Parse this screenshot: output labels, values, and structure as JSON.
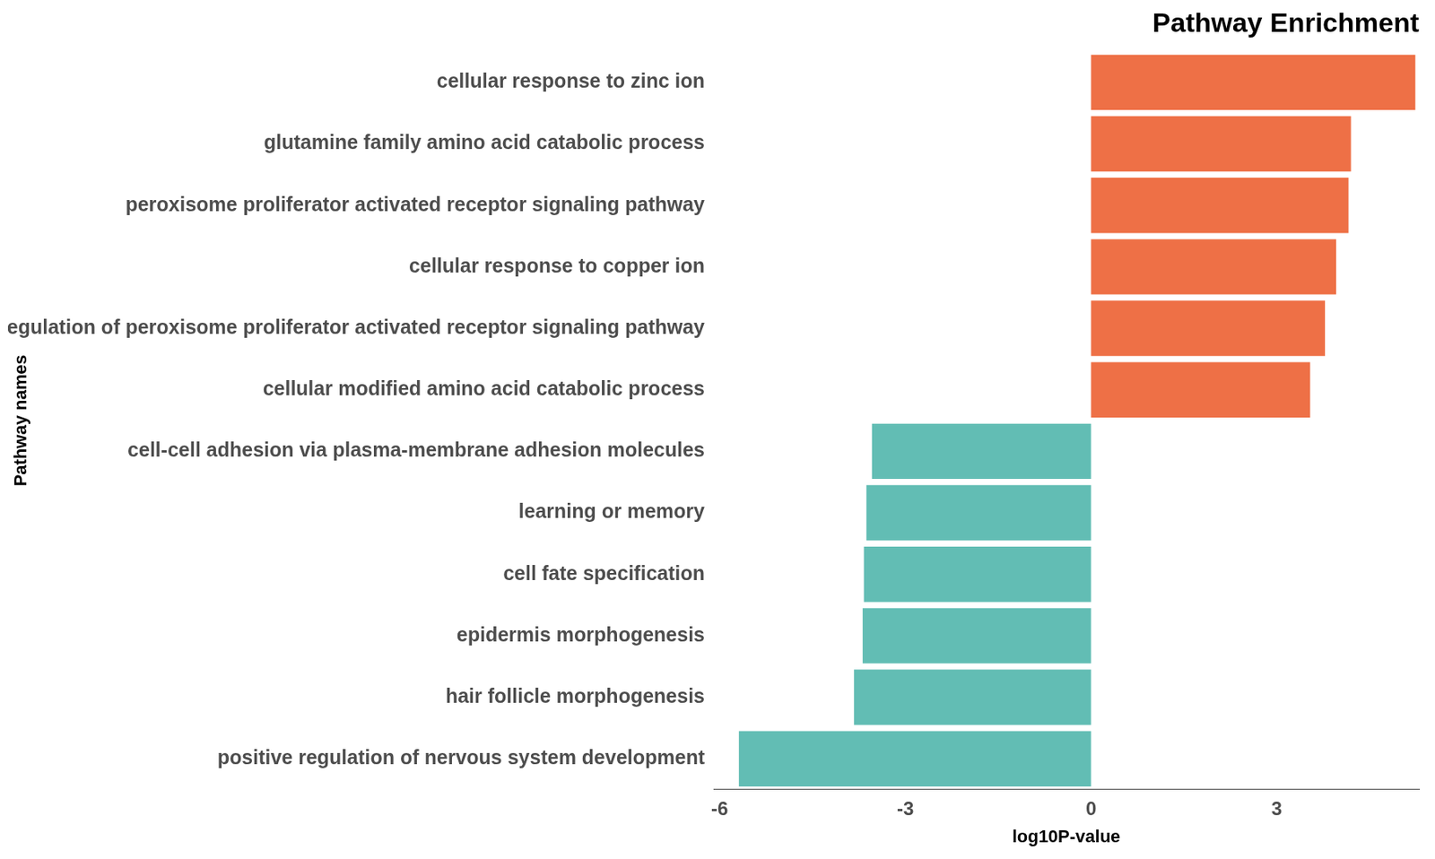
{
  "chart_data": {
    "type": "bar",
    "orientation": "horizontal",
    "title": "Pathway Enrichment",
    "x_label": "log10P-value",
    "y_label": "Pathway names",
    "categories": [
      "cellular response to zinc ion",
      "glutamine family amino acid catabolic process",
      "peroxisome proliferator activated receptor signaling pathway",
      "cellular response to copper ion",
      "regulation of peroxisome proliferator activated receptor signaling pathway",
      "cellular modified amino acid catabolic process",
      "cell-cell adhesion via plasma-membrane adhesion molecules",
      "learning or memory",
      "cell fate specification",
      "epidermis morphogenesis",
      "hair follicle morphogenesis",
      "positive regulation of nervous system development"
    ],
    "values": [
      5.24,
      4.2,
      4.16,
      3.96,
      3.78,
      3.54,
      -3.54,
      -3.63,
      -3.67,
      -3.69,
      -3.83,
      -5.69
    ],
    "colors": [
      "#ee7046",
      "#ee7046",
      "#ee7046",
      "#ee7046",
      "#ee7046",
      "#ee7046",
      "#62bdb4",
      "#62bdb4",
      "#62bdb4",
      "#62bdb4",
      "#62bdb4",
      "#62bdb4"
    ],
    "xlim": [
      -6.1,
      5.3
    ],
    "xticks": [
      -6,
      -3,
      0,
      3
    ],
    "grid": false
  }
}
